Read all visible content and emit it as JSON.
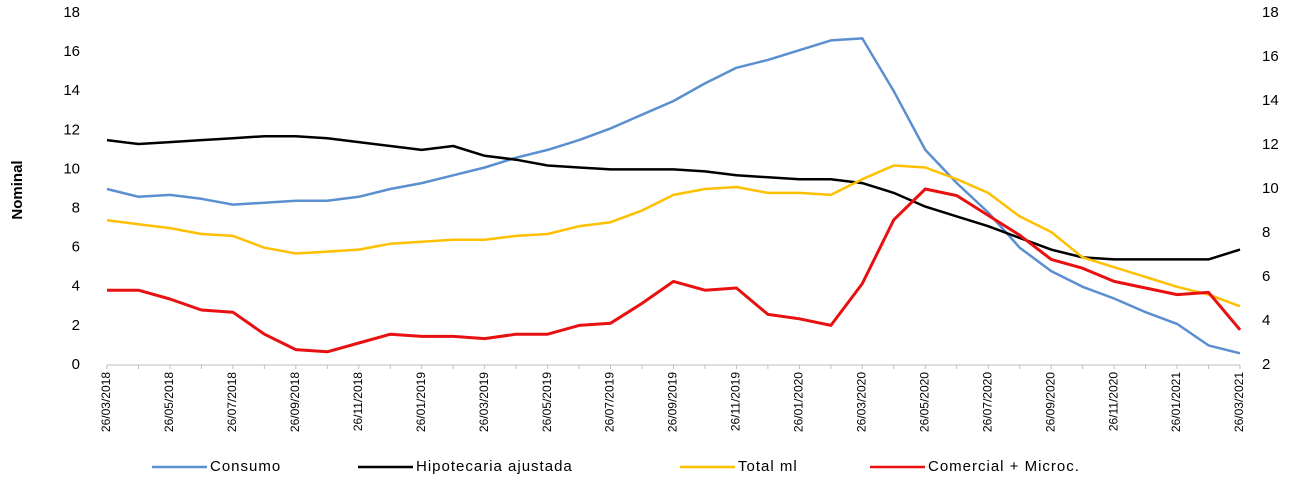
{
  "chart_data": {
    "type": "line",
    "y_label": "Nominal",
    "categories": [
      "26/03/2018",
      null,
      "26/05/2018",
      null,
      "26/07/2018",
      null,
      "26/09/2018",
      null,
      "26/11/2018",
      null,
      "26/01/2019",
      null,
      "26/03/2019",
      null,
      "26/05/2019",
      null,
      "26/07/2019",
      null,
      "26/09/2019",
      null,
      "26/11/2019",
      null,
      "26/01/2020",
      null,
      "26/03/2020",
      null,
      "26/05/2020",
      null,
      "26/07/2020",
      null,
      "26/09/2020",
      null,
      "26/11/2020",
      null,
      "26/01/2021",
      null,
      "26/03/2021"
    ],
    "ylim": [
      0,
      18
    ],
    "yticks": [
      0,
      2,
      4,
      6,
      8,
      10,
      12,
      14,
      16,
      18
    ],
    "y2lim": [
      2,
      18
    ],
    "y2ticks": [
      2,
      4,
      6,
      8,
      10,
      12,
      14,
      16,
      18
    ],
    "legend": "bottom",
    "series": [
      {
        "name": "Consumo",
        "color": "#5b8fd0",
        "values": [
          9.0,
          8.6,
          8.7,
          8.5,
          8.2,
          8.3,
          8.4,
          8.4,
          8.6,
          9.0,
          9.3,
          9.7,
          10.1,
          10.6,
          11.0,
          11.5,
          12.1,
          12.8,
          13.5,
          14.4,
          15.2,
          15.6,
          16.1,
          16.6,
          16.7,
          14.0,
          11.0,
          9.3,
          7.8,
          6.0,
          4.8,
          4.0,
          3.4,
          2.7,
          2.1,
          1.0,
          0.6
        ]
      },
      {
        "name": "Hipotecaria ajustada",
        "color": "#000000",
        "values": [
          11.5,
          11.3,
          11.4,
          11.5,
          11.6,
          11.7,
          11.7,
          11.6,
          11.4,
          11.2,
          11.0,
          11.2,
          10.7,
          10.5,
          10.2,
          10.1,
          10.0,
          10.0,
          10.0,
          9.9,
          9.7,
          9.6,
          9.5,
          9.5,
          9.3,
          8.8,
          8.1,
          7.6,
          7.1,
          6.5,
          5.9,
          5.5,
          5.4,
          5.4,
          5.4,
          5.4,
          5.9
        ]
      },
      {
        "name": "Total ml",
        "color": "#ffc000",
        "values": [
          7.4,
          7.2,
          7.0,
          6.7,
          6.6,
          6.0,
          5.7,
          5.8,
          5.9,
          6.2,
          6.3,
          6.4,
          6.4,
          6.6,
          6.7,
          7.1,
          7.3,
          7.9,
          8.7,
          9.0,
          9.1,
          8.8,
          8.8,
          8.7,
          9.5,
          10.2,
          10.1,
          9.5,
          8.8,
          7.6,
          6.8,
          5.5,
          5.0,
          4.5,
          4.0,
          3.6,
          3.0
        ]
      },
      {
        "name": "Comercial + Microc.",
        "color": "#e81010",
        "axis": "y2",
        "values": [
          5.4,
          5.4,
          5.0,
          4.5,
          4.4,
          3.4,
          2.7,
          2.6,
          3.0,
          3.4,
          3.3,
          3.3,
          3.2,
          3.4,
          3.4,
          3.8,
          3.9,
          4.8,
          5.8,
          5.4,
          5.5,
          4.3,
          4.1,
          3.8,
          5.7,
          8.6,
          10.0,
          9.7,
          8.8,
          7.9,
          6.8,
          6.4,
          5.8,
          5.5,
          5.2,
          5.3,
          3.6
        ]
      }
    ]
  }
}
